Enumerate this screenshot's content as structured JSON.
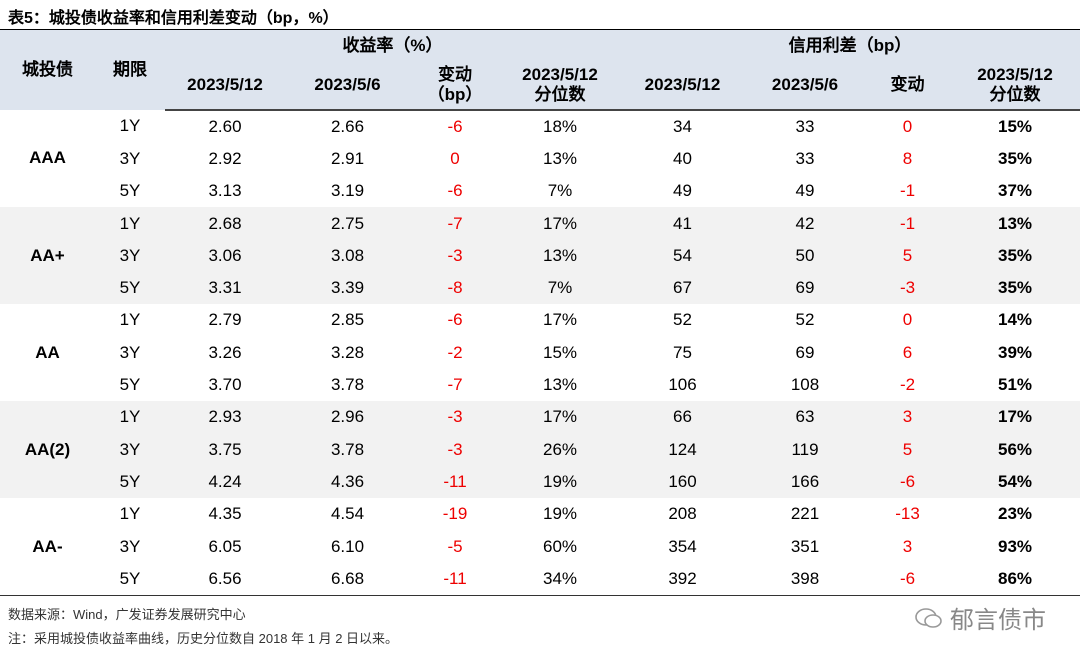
{
  "title": "表5：城投债收益率和信用利差变动（bp，%）",
  "header": {
    "rating": "城投债",
    "term": "期限",
    "yield_group": "收益率（%）",
    "spread_group": "信用利差（bp）",
    "yield_cols": [
      [
        "2023/5/12"
      ],
      [
        "2023/5/6"
      ],
      [
        "变动",
        "（bp）"
      ],
      [
        "2023/5/12",
        "分位数"
      ]
    ],
    "spread_cols": [
      [
        "2023/5/12"
      ],
      [
        "2023/5/6"
      ],
      [
        "变动"
      ],
      [
        "2023/5/12",
        "分位数"
      ]
    ]
  },
  "groups": [
    {
      "rating": "AAA",
      "rows": [
        [
          "1Y",
          "2.60",
          "2.66",
          "-6",
          "18%",
          "34",
          "33",
          "0",
          "15%"
        ],
        [
          "3Y",
          "2.92",
          "2.91",
          "0",
          "13%",
          "40",
          "33",
          "8",
          "35%"
        ],
        [
          "5Y",
          "3.13",
          "3.19",
          "-6",
          "7%",
          "49",
          "49",
          "-1",
          "37%"
        ]
      ]
    },
    {
      "rating": "AA+",
      "rows": [
        [
          "1Y",
          "2.68",
          "2.75",
          "-7",
          "17%",
          "41",
          "42",
          "-1",
          "13%"
        ],
        [
          "3Y",
          "3.06",
          "3.08",
          "-3",
          "13%",
          "54",
          "50",
          "5",
          "35%"
        ],
        [
          "5Y",
          "3.31",
          "3.39",
          "-8",
          "7%",
          "67",
          "69",
          "-3",
          "35%"
        ]
      ]
    },
    {
      "rating": "AA",
      "rows": [
        [
          "1Y",
          "2.79",
          "2.85",
          "-6",
          "17%",
          "52",
          "52",
          "0",
          "14%"
        ],
        [
          "3Y",
          "3.26",
          "3.28",
          "-2",
          "15%",
          "75",
          "69",
          "6",
          "39%"
        ],
        [
          "5Y",
          "3.70",
          "3.78",
          "-7",
          "13%",
          "106",
          "108",
          "-2",
          "51%"
        ]
      ]
    },
    {
      "rating": "AA(2)",
      "rows": [
        [
          "1Y",
          "2.93",
          "2.96",
          "-3",
          "17%",
          "66",
          "63",
          "3",
          "17%"
        ],
        [
          "3Y",
          "3.75",
          "3.78",
          "-3",
          "26%",
          "124",
          "119",
          "5",
          "56%"
        ],
        [
          "5Y",
          "4.24",
          "4.36",
          "-11",
          "19%",
          "160",
          "166",
          "-6",
          "54%"
        ]
      ]
    },
    {
      "rating": "AA-",
      "rows": [
        [
          "1Y",
          "4.35",
          "4.54",
          "-19",
          "19%",
          "208",
          "221",
          "-13",
          "23%"
        ],
        [
          "3Y",
          "6.05",
          "6.10",
          "-5",
          "60%",
          "354",
          "351",
          "3",
          "93%"
        ],
        [
          "5Y",
          "6.56",
          "6.68",
          "-11",
          "34%",
          "392",
          "398",
          "-6",
          "86%"
        ]
      ]
    }
  ],
  "footer": {
    "source": "数据来源：Wind，广发证券发展研究中心",
    "note": "注：采用城投债收益率曲线，历史分位数自 2018 年 1 月 2 日以来。",
    "watermark": "郁言债市"
  }
}
